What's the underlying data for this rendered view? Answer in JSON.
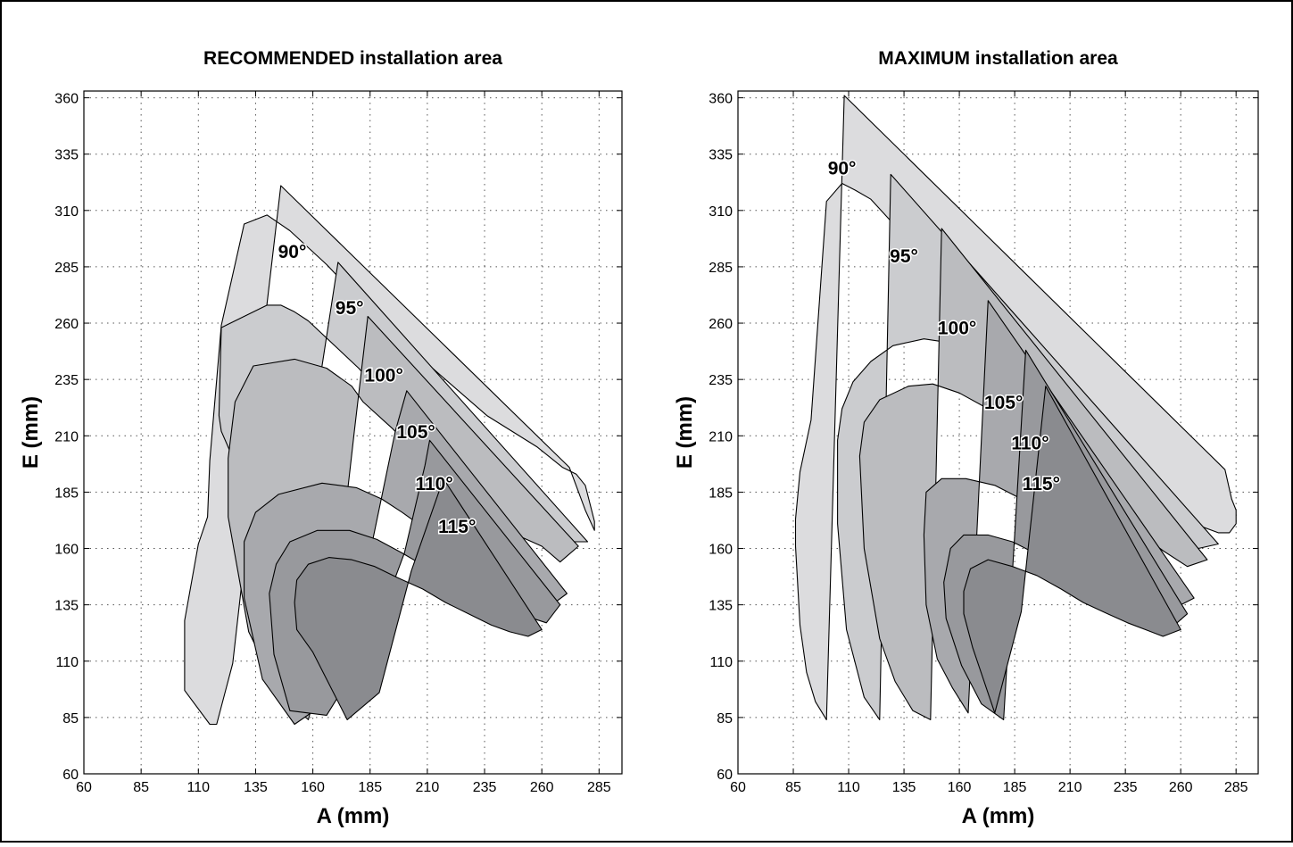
{
  "chart_data": [
    {
      "type": "area",
      "title": "RECOMMENDED installation area",
      "xlabel": "A (mm)",
      "ylabel": "E (mm)",
      "xlim": [
        60,
        295
      ],
      "ylim": [
        60,
        363
      ],
      "xticks": [
        60,
        85,
        110,
        135,
        160,
        185,
        210,
        235,
        260,
        285
      ],
      "yticks": [
        60,
        85,
        110,
        135,
        160,
        185,
        210,
        235,
        260,
        285,
        310,
        335,
        360
      ],
      "grid": true,
      "series": [
        {
          "name": "90°",
          "fill": "#dcdcde",
          "label_at": [
            151,
            289
          ],
          "x": [
            146,
            272,
            279,
            283,
            283,
            279,
            275,
            269,
            258,
            236,
            210,
            180,
            166,
            150,
            140,
            130,
            120,
            115,
            114,
            110,
            104,
            104,
            115,
            118,
            125,
            134,
            139,
            146
          ],
          "y": [
            321,
            196,
            177,
            168,
            172,
            188,
            193,
            196,
            205,
            219,
            242,
            271,
            286,
            301,
            308,
            304,
            259,
            199,
            174,
            162,
            128,
            97,
            82,
            82,
            109,
            190,
            260,
            321
          ]
        },
        {
          "name": "95°",
          "fill": "#cbcccf",
          "label_at": [
            176,
            264
          ],
          "x": [
            171,
            280,
            272,
            259,
            246,
            225,
            211,
            193,
            180,
            158,
            152,
            146,
            140,
            120,
            119,
            120,
            129,
            138,
            145,
            158,
            164,
            171
          ],
          "y": [
            287,
            163,
            163,
            170,
            177,
            193,
            205,
            225,
            240,
            261,
            265,
            268,
            268,
            258,
            219,
            212,
            191,
            142,
            114,
            174,
            241,
            287
          ]
        },
        {
          "name": "100°",
          "fill": "#bbbcbf",
          "label_at": [
            191,
            234
          ],
          "x": [
            184,
            276,
            268,
            260,
            249,
            234,
            221,
            207,
            195,
            182,
            177,
            166,
            152,
            134,
            126,
            123,
            123,
            132,
            145,
            158,
            168,
            178,
            184
          ],
          "y": [
            263,
            161,
            154,
            161,
            166,
            173,
            186,
            200,
            213,
            225,
            232,
            240,
            244,
            241,
            225,
            200,
            174,
            123,
            96,
            84,
            121,
            211,
            263
          ]
        },
        {
          "name": "105°",
          "fill": "#a8a9ad",
          "label_at": [
            205,
            209
          ],
          "x": [
            201,
            271,
            263,
            252,
            243,
            231,
            220,
            210,
            199,
            190,
            179,
            164,
            145,
            135,
            130,
            130,
            138,
            152,
            172,
            186,
            196,
            201
          ],
          "y": [
            230,
            140,
            134,
            141,
            147,
            152,
            159,
            168,
            176,
            182,
            187,
            189,
            184,
            176,
            163,
            138,
            102,
            82,
            96,
            163,
            212,
            230
          ]
        },
        {
          "name": "110°",
          "fill": "#98999d",
          "label_at": [
            213,
            186
          ],
          "x": [
            211,
            268,
            262,
            253,
            247,
            239,
            230,
            219,
            209,
            199,
            188,
            176,
            162,
            150,
            144,
            141,
            143,
            150,
            166,
            185,
            200,
            209,
            211
          ],
          "y": [
            208,
            135,
            127,
            130,
            133,
            137,
            140,
            145,
            152,
            158,
            164,
            168,
            168,
            163,
            153,
            140,
            113,
            88,
            86,
            117,
            158,
            197,
            208
          ]
        },
        {
          "name": "115°",
          "fill": "#8a8b8f",
          "label_at": [
            223,
            167
          ],
          "x": [
            217,
            260,
            254,
            246,
            238,
            228,
            218,
            208,
            197,
            187,
            177,
            167,
            158,
            153,
            152,
            153,
            160,
            175,
            189,
            203,
            215,
            217
          ],
          "y": [
            191,
            124,
            121,
            123,
            126,
            131,
            136,
            142,
            147,
            152,
            155,
            156,
            153,
            146,
            136,
            124,
            114,
            84,
            96,
            150,
            185,
            191
          ]
        }
      ]
    },
    {
      "type": "area",
      "title": "MAXIMUM installation area",
      "xlabel": "A (mm)",
      "ylabel": "E (mm)",
      "xlim": [
        60,
        295
      ],
      "ylim": [
        60,
        363
      ],
      "xticks": [
        60,
        85,
        110,
        135,
        160,
        185,
        210,
        235,
        260,
        285
      ],
      "yticks": [
        60,
        85,
        110,
        135,
        160,
        185,
        210,
        235,
        260,
        285,
        310,
        335,
        360
      ],
      "grid": true,
      "series": [
        {
          "name": "90°",
          "fill": "#dcdcde",
          "label_at": [
            107,
            326
          ],
          "x": [
            108,
            280,
            283,
            285,
            285,
            282,
            277,
            266,
            249,
            232,
            212,
            194,
            178,
            162,
            148,
            134,
            120,
            113,
            107,
            100,
            93,
            88,
            86,
            86,
            88,
            91,
            95,
            100,
            108
          ],
          "y": [
            361,
            195,
            182,
            177,
            171,
            167,
            167,
            171,
            182,
            197,
            214,
            232,
            249,
            270,
            284,
            300,
            315,
            319,
            322,
            314,
            217,
            194,
            173,
            161,
            126,
            105,
            92,
            84,
            361
          ]
        },
        {
          "name": "95°",
          "fill": "#cbcccf",
          "label_at": [
            135,
            287
          ],
          "x": [
            129,
            277,
            268,
            255,
            237,
            220,
            201,
            189,
            171,
            158,
            144,
            130,
            120,
            112,
            107,
            105,
            105,
            109,
            117,
            124,
            129
          ],
          "y": [
            326,
            162,
            160,
            168,
            184,
            199,
            214,
            226,
            243,
            251,
            253,
            250,
            243,
            234,
            222,
            208,
            171,
            124,
            94,
            84,
            326
          ]
        },
        {
          "name": "100°",
          "fill": "#bbbcbf",
          "label_at": [
            159,
            255
          ],
          "x": [
            152,
            272,
            263,
            252,
            237,
            218,
            204,
            188,
            173,
            160,
            148,
            137,
            124,
            117,
            115,
            117,
            124,
            131,
            139,
            147,
            152
          ],
          "y": [
            302,
            155,
            152,
            159,
            170,
            185,
            198,
            210,
            222,
            229,
            233,
            232,
            226,
            216,
            201,
            160,
            120,
            101,
            88,
            84,
            302
          ]
        },
        {
          "name": "105°",
          "fill": "#a8a9ad",
          "label_at": [
            180,
            222
          ],
          "x": [
            173,
            266,
            258,
            247,
            237,
            225,
            212,
            200,
            188,
            176,
            163,
            152,
            145,
            144,
            145,
            150,
            157,
            164,
            173
          ],
          "y": [
            270,
            138,
            134,
            141,
            148,
            157,
            166,
            175,
            182,
            188,
            191,
            191,
            185,
            166,
            135,
            111,
            98,
            87,
            270
          ]
        },
        {
          "name": "110°",
          "fill": "#98999d",
          "label_at": [
            192,
            204
          ],
          "x": [
            190,
            263,
            256,
            246,
            236,
            225,
            215,
            204,
            194,
            184,
            173,
            162,
            156,
            153,
            154,
            161,
            170,
            180,
            190
          ],
          "y": [
            248,
            131,
            125,
            130,
            135,
            140,
            145,
            152,
            158,
            163,
            166,
            166,
            160,
            145,
            129,
            108,
            91,
            84,
            248
          ]
        },
        {
          "name": "115°",
          "fill": "#8a8b8f",
          "label_at": [
            197,
            186
          ],
          "x": [
            199,
            260,
            252,
            244,
            236,
            227,
            216,
            206,
            195,
            184,
            173,
            165,
            162,
            162,
            166,
            176,
            188,
            199
          ],
          "y": [
            232,
            124,
            121,
            124,
            127,
            131,
            136,
            142,
            148,
            152,
            155,
            151,
            141,
            131,
            116,
            87,
            132,
            232
          ]
        }
      ]
    }
  ]
}
